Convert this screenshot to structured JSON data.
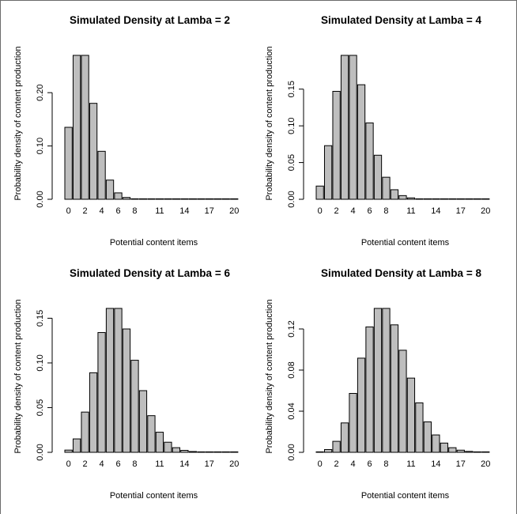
{
  "chart_data": [
    {
      "type": "bar",
      "title": "Simulated Density at Lamba = 2",
      "xlabel": "Potential content items",
      "ylabel": "Probability density of content production",
      "categories": [
        0,
        1,
        2,
        3,
        4,
        5,
        6,
        7,
        8,
        9,
        10,
        11,
        12,
        13,
        14,
        15,
        16,
        17,
        18,
        19,
        20
      ],
      "x_tick_labels": [
        "0",
        "2",
        "4",
        "6",
        "8",
        "11",
        "14",
        "17",
        "20"
      ],
      "y_ticks": [
        "0.00",
        "0.10",
        "0.20"
      ],
      "ylim": [
        0,
        0.27
      ],
      "bar_color": "#bebebe",
      "values": [
        0.135,
        0.27,
        0.27,
        0.18,
        0.09,
        0.036,
        0.012,
        0.0034,
        0.0009,
        0.0002,
        0,
        0,
        0,
        0,
        0,
        0,
        0,
        0,
        0,
        0,
        0
      ]
    },
    {
      "type": "bar",
      "title": "Simulated Density at Lamba = 4",
      "xlabel": "Potential content items",
      "ylabel": "Probability density of content production",
      "categories": [
        0,
        1,
        2,
        3,
        4,
        5,
        6,
        7,
        8,
        9,
        10,
        11,
        12,
        13,
        14,
        15,
        16,
        17,
        18,
        19,
        20
      ],
      "x_tick_labels": [
        "0",
        "2",
        "4",
        "6",
        "8",
        "11",
        "14",
        "17",
        "20"
      ],
      "y_ticks": [
        "0.00",
        "0.05",
        "0.10",
        "0.15"
      ],
      "ylim": [
        0,
        0.196
      ],
      "bar_color": "#bebebe",
      "values": [
        0.018,
        0.073,
        0.147,
        0.196,
        0.196,
        0.156,
        0.104,
        0.06,
        0.03,
        0.013,
        0.005,
        0.0019,
        0.0006,
        0.0002,
        0.0001,
        0,
        0,
        0,
        0,
        0,
        0
      ]
    },
    {
      "type": "bar",
      "title": "Simulated Density at Lamba = 6",
      "xlabel": "Potential content items",
      "ylabel": "Probability density of content production",
      "categories": [
        0,
        1,
        2,
        3,
        4,
        5,
        6,
        7,
        8,
        9,
        10,
        11,
        12,
        13,
        14,
        15,
        16,
        17,
        18,
        19,
        20
      ],
      "x_tick_labels": [
        "0",
        "2",
        "4",
        "6",
        "8",
        "11",
        "14",
        "17",
        "20"
      ],
      "y_ticks": [
        "0.00",
        "0.05",
        "0.10",
        "0.15"
      ],
      "ylim": [
        0,
        0.161
      ],
      "bar_color": "#bebebe",
      "values": [
        0.0025,
        0.015,
        0.045,
        0.089,
        0.134,
        0.161,
        0.161,
        0.138,
        0.103,
        0.069,
        0.041,
        0.0225,
        0.0113,
        0.0052,
        0.0022,
        0.0009,
        0.0003,
        0.0001,
        0,
        0,
        0
      ]
    },
    {
      "type": "bar",
      "title": "Simulated Density at Lamba = 8",
      "xlabel": "Potential content items",
      "ylabel": "Probability density of content production",
      "categories": [
        0,
        1,
        2,
        3,
        4,
        5,
        6,
        7,
        8,
        9,
        10,
        11,
        12,
        13,
        14,
        15,
        16,
        17,
        18,
        19,
        20
      ],
      "x_tick_labels": [
        "0",
        "2",
        "4",
        "6",
        "8",
        "11",
        "14",
        "17",
        "20"
      ],
      "y_ticks": [
        "0.00",
        "0.04",
        "0.08",
        "0.12"
      ],
      "ylim": [
        0,
        0.14
      ],
      "bar_color": "#bebebe",
      "values": [
        0.0003,
        0.0027,
        0.0107,
        0.0286,
        0.0573,
        0.0916,
        0.122,
        0.14,
        0.14,
        0.124,
        0.0993,
        0.0722,
        0.0481,
        0.0296,
        0.0169,
        0.009,
        0.0045,
        0.0021,
        0.0009,
        0.0004,
        0.0002
      ]
    }
  ]
}
